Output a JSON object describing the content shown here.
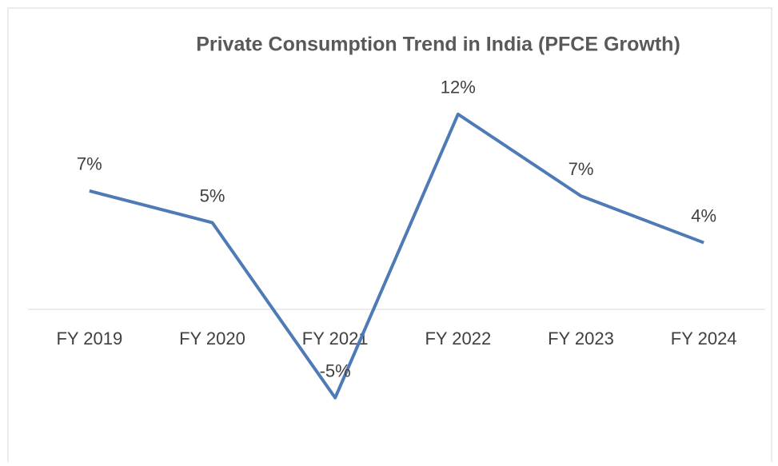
{
  "chart_data": {
    "type": "line",
    "title": "Private Consumption Trend in India (PFCE Growth)",
    "categories": [
      "FY 2019",
      "FY 2020",
      "FY 2021",
      "FY 2022",
      "FY 2023",
      "FY 2024"
    ],
    "series": [
      {
        "color": "#4e7ab5",
        "values": [
          7.1,
          5.2,
          -5.3,
          11.7,
          6.8,
          4.0
        ],
        "value_labels": [
          "7%",
          "5%",
          "-5%",
          "12%",
          "7%",
          "4%"
        ]
      }
    ],
    "ylim": [
      -8,
      15
    ],
    "grid": false
  }
}
